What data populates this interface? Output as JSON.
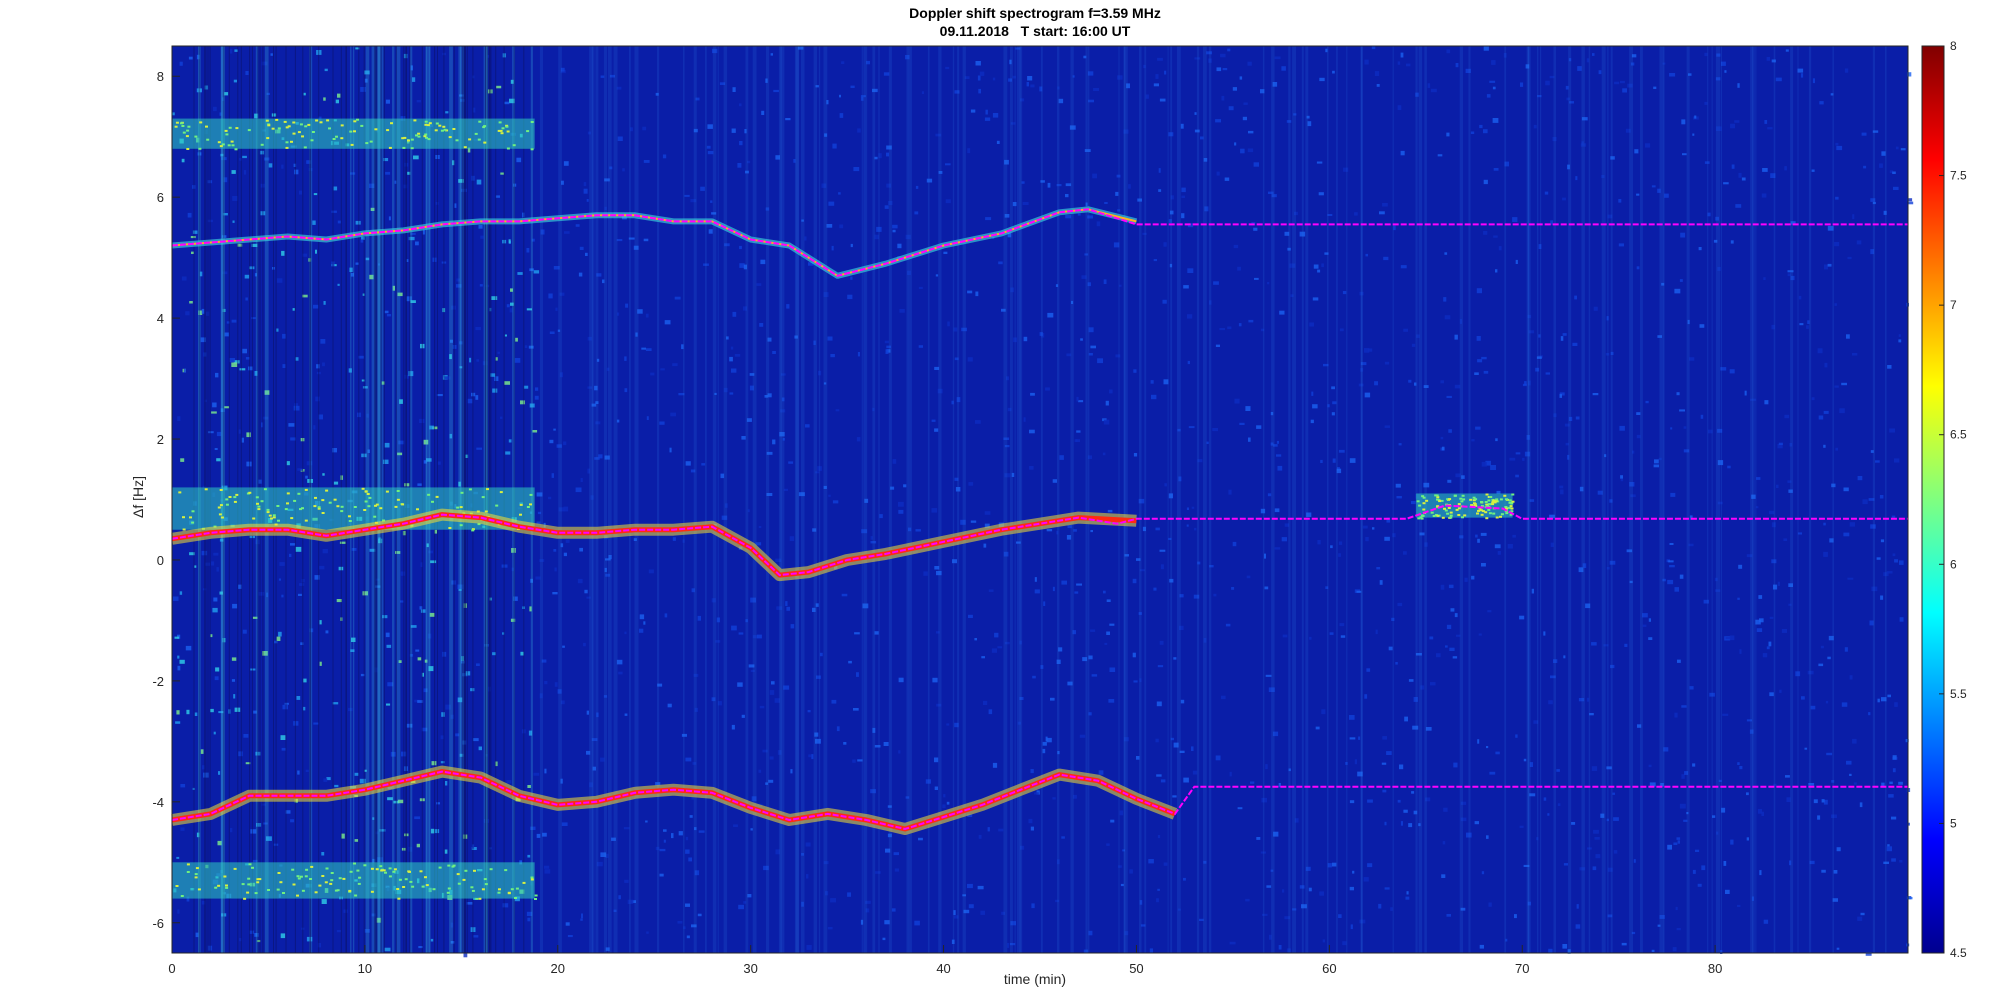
{
  "chart_data": {
    "type": "heatmap",
    "title": "Doppler shift spectrogram f=3.59 MHz",
    "subtitle": "09.11.2018   T start: 16:00 UT",
    "xlabel": "time (min)",
    "ylabel": "Δf [Hz]",
    "xlim": [
      0,
      90
    ],
    "ylim": [
      -6.5,
      8.5
    ],
    "x_ticks": [
      0,
      10,
      20,
      30,
      40,
      50,
      60,
      70,
      80
    ],
    "y_ticks": [
      -6,
      -4,
      -2,
      0,
      2,
      4,
      6,
      8
    ],
    "colorbar": {
      "range": [
        4.5,
        8
      ],
      "ticks": [
        "4.5",
        "5",
        "5.5",
        "6",
        "6.5",
        "7",
        "7.5",
        "8"
      ],
      "colormap": "jet"
    },
    "background_color": "#0a1ea8",
    "traces": [
      {
        "kind": "strong",
        "color": "#ff2a10",
        "x": [
          0,
          2,
          4,
          6,
          8,
          10,
          12,
          14,
          16,
          18,
          20,
          22,
          24,
          26,
          28,
          30,
          31.5,
          33,
          35,
          37,
          40,
          43,
          45,
          47,
          50
        ],
        "y": [
          0.35,
          0.45,
          0.5,
          0.5,
          0.4,
          0.5,
          0.6,
          0.75,
          0.7,
          0.55,
          0.45,
          0.45,
          0.5,
          0.5,
          0.55,
          0.2,
          -0.25,
          -0.2,
          0.0,
          0.1,
          0.3,
          0.5,
          0.6,
          0.7,
          0.65
        ]
      },
      {
        "kind": "strong",
        "color": "#ff2a10",
        "x": [
          0,
          2,
          4,
          6,
          8,
          10,
          12,
          14,
          16,
          18,
          20,
          22,
          24,
          26,
          28,
          30,
          32,
          34,
          36,
          38,
          40,
          42,
          44,
          46,
          48,
          50,
          52
        ],
        "y": [
          -4.3,
          -4.2,
          -3.9,
          -3.9,
          -3.9,
          -3.8,
          -3.65,
          -3.5,
          -3.6,
          -3.9,
          -4.05,
          -4.0,
          -3.85,
          -3.8,
          -3.85,
          -4.1,
          -4.3,
          -4.2,
          -4.3,
          -4.45,
          -4.25,
          -4.05,
          -3.8,
          -3.55,
          -3.65,
          -3.95,
          -4.2
        ]
      },
      {
        "kind": "faint",
        "color": "#ffb020",
        "x": [
          0,
          2,
          4,
          6,
          8,
          10,
          12,
          14,
          16,
          18,
          20,
          22,
          24,
          26,
          28,
          30,
          32,
          34.5,
          37,
          40,
          43,
          46,
          47.5,
          50
        ],
        "y": [
          5.2,
          5.25,
          5.3,
          5.35,
          5.3,
          5.4,
          5.45,
          5.55,
          5.6,
          5.6,
          5.65,
          5.7,
          5.7,
          5.6,
          5.6,
          5.3,
          5.2,
          4.7,
          4.9,
          5.2,
          5.4,
          5.75,
          5.8,
          5.6
        ]
      }
    ],
    "tracked_lines": [
      {
        "color": "#ff00ff",
        "x": [
          0,
          2,
          4,
          6,
          8,
          10,
          12,
          14,
          16,
          18,
          20,
          22,
          24,
          26,
          28,
          30,
          32,
          34.5,
          37,
          40,
          43,
          46,
          47.5,
          50,
          55,
          60,
          65,
          70,
          75,
          80,
          85,
          90
        ],
        "y": [
          5.2,
          5.25,
          5.3,
          5.35,
          5.3,
          5.4,
          5.45,
          5.55,
          5.6,
          5.6,
          5.65,
          5.7,
          5.7,
          5.6,
          5.6,
          5.3,
          5.2,
          4.7,
          4.9,
          5.2,
          5.4,
          5.75,
          5.8,
          5.55,
          5.55,
          5.55,
          5.55,
          5.55,
          5.55,
          5.55,
          5.55,
          5.55
        ]
      },
      {
        "color": "#ff00ff",
        "x": [
          0,
          2,
          4,
          6,
          8,
          10,
          12,
          14,
          16,
          18,
          20,
          22,
          24,
          26,
          28,
          30,
          31.5,
          33,
          35,
          37,
          40,
          43,
          45,
          47,
          49,
          50,
          55,
          60,
          64,
          66,
          69,
          70,
          75,
          80,
          85,
          90
        ],
        "y": [
          0.35,
          0.45,
          0.5,
          0.5,
          0.4,
          0.5,
          0.6,
          0.75,
          0.7,
          0.55,
          0.45,
          0.45,
          0.5,
          0.5,
          0.55,
          0.2,
          -0.25,
          -0.2,
          0.0,
          0.1,
          0.3,
          0.5,
          0.6,
          0.7,
          0.6,
          0.68,
          0.68,
          0.68,
          0.68,
          0.9,
          0.85,
          0.68,
          0.68,
          0.68,
          0.68,
          0.68
        ]
      },
      {
        "color": "#ff00ff",
        "x": [
          0,
          2,
          4,
          6,
          8,
          10,
          12,
          14,
          16,
          18,
          20,
          22,
          24,
          26,
          28,
          30,
          32,
          34,
          36,
          38,
          40,
          42,
          44,
          46,
          48,
          50,
          52,
          53,
          55,
          60,
          70,
          80,
          90
        ],
        "y": [
          -4.3,
          -4.2,
          -3.9,
          -3.9,
          -3.9,
          -3.8,
          -3.65,
          -3.5,
          -3.6,
          -3.9,
          -4.05,
          -4.0,
          -3.85,
          -3.8,
          -3.85,
          -4.1,
          -4.3,
          -4.2,
          -4.3,
          -4.45,
          -4.25,
          -4.05,
          -3.8,
          -3.55,
          -3.65,
          -3.95,
          -4.2,
          -3.75,
          -3.75,
          -3.75,
          -3.75,
          -3.75,
          -3.75
        ]
      }
    ],
    "bright_bands": [
      {
        "x_range": [
          0,
          18.8
        ],
        "y_range": [
          6.8,
          7.3
        ]
      },
      {
        "x_range": [
          0,
          18.8
        ],
        "y_range": [
          0.5,
          1.2
        ]
      },
      {
        "x_range": [
          0,
          18.8
        ],
        "y_range": [
          -5.6,
          -5.0
        ]
      },
      {
        "x_range": [
          64.5,
          69.5
        ],
        "y_range": [
          0.7,
          1.1
        ]
      }
    ],
    "noisy_region": {
      "x_range": [
        0,
        18.8
      ],
      "y_range": [
        -6.5,
        8.5
      ]
    }
  }
}
